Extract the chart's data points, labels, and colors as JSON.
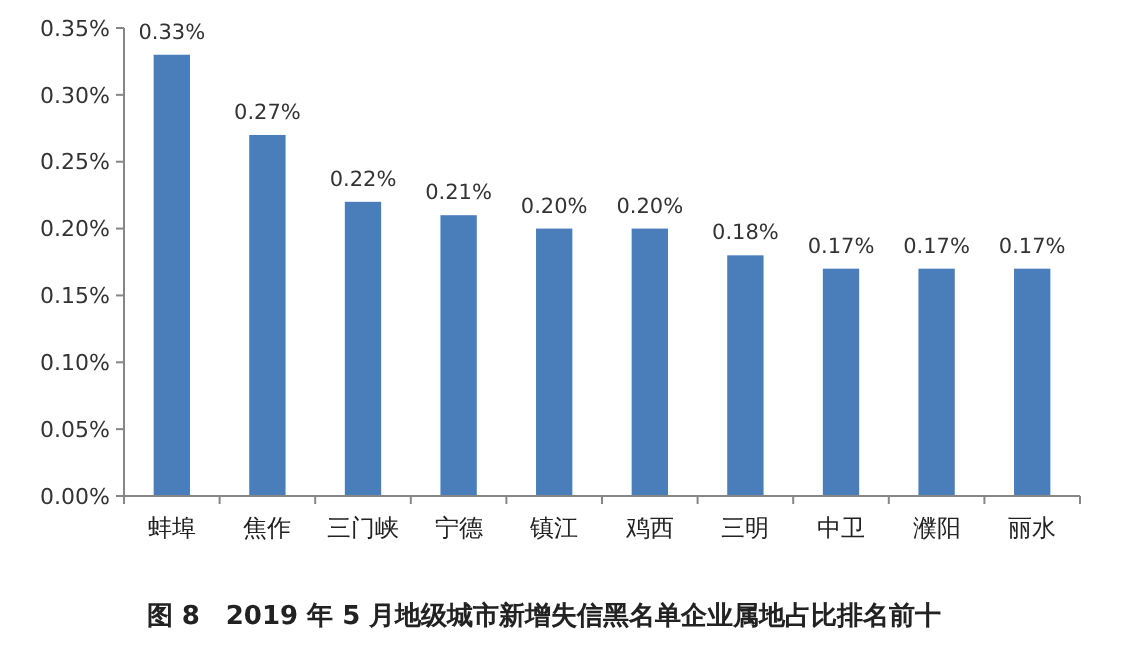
{
  "chart_data": {
    "type": "bar",
    "title": "图 8　2019 年 5 月地级城市新增失信黑名单企业属地占比排名前十",
    "categories": [
      "蚌埠",
      "焦作",
      "三门峡",
      "宁德",
      "镇江",
      "鸡西",
      "三明",
      "中卫",
      "濮阳",
      "丽水"
    ],
    "values": [
      0.33,
      0.27,
      0.22,
      0.21,
      0.2,
      0.2,
      0.18,
      0.17,
      0.17,
      0.17
    ],
    "value_labels": [
      "0.33%",
      "0.27%",
      "0.22%",
      "0.21%",
      "0.20%",
      "0.20%",
      "0.18%",
      "0.17%",
      "0.17%",
      "0.17%"
    ],
    "color": "#4a7ebb",
    "ylim": [
      0,
      0.35
    ],
    "yticks": [
      {
        "value": 0,
        "label": "0.00%"
      },
      {
        "value": 0.05,
        "label": "0.05%"
      },
      {
        "value": 0.1,
        "label": "0.10%"
      },
      {
        "value": 0.15,
        "label": "0.15%"
      },
      {
        "value": 0.2,
        "label": "0.20%"
      },
      {
        "value": 0.25,
        "label": "0.25%"
      },
      {
        "value": 0.3,
        "label": "0.30%"
      },
      {
        "value": 0.35,
        "label": "0.35%"
      }
    ],
    "grid": false
  }
}
